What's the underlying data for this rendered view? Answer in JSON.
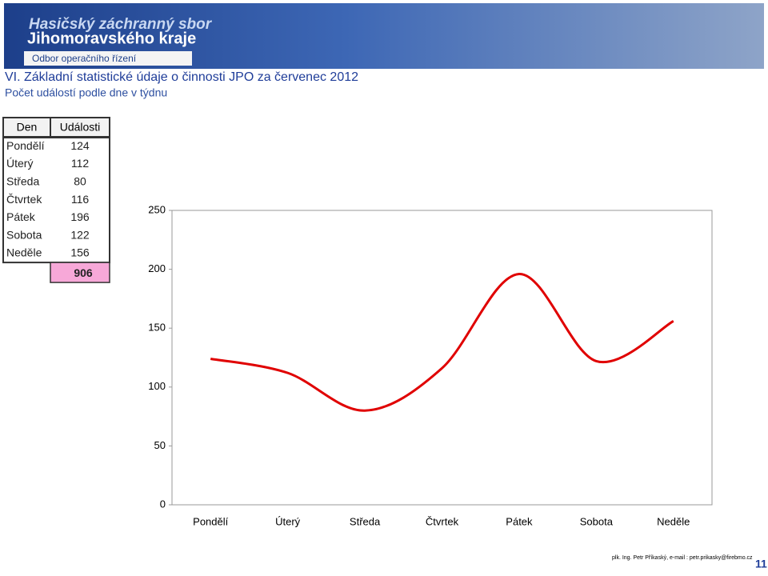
{
  "header": {
    "line1": "Hasičský záchranný sbor",
    "line2": "Jihomoravského kraje",
    "line3": "Odbor operačního řízení"
  },
  "title": "VI. Základní statistické údaje o činnosti JPO za červenec 2012",
  "subtitle": "Počet událostí podle dne v týdnu",
  "table": {
    "columns": [
      "Den",
      "Události"
    ],
    "rows": [
      [
        "Pondělí",
        124
      ],
      [
        "Úterý",
        112
      ],
      [
        "Středa",
        80
      ],
      [
        "Čtvrtek",
        116
      ],
      [
        "Pátek",
        196
      ],
      [
        "Sobota",
        122
      ],
      [
        "Neděle",
        156
      ]
    ],
    "total": 906
  },
  "chart_data": {
    "type": "line",
    "categories": [
      "Pondělí",
      "Úterý",
      "Středa",
      "Čtvrtek",
      "Pátek",
      "Sobota",
      "Neděle"
    ],
    "values": [
      124,
      112,
      80,
      116,
      196,
      122,
      156
    ],
    "color": "#e00000",
    "smooth": true,
    "ylim": [
      0,
      250
    ],
    "yticks": [
      0,
      50,
      100,
      150,
      200,
      250
    ],
    "grid": false
  },
  "footer": {
    "author": "plk. Ing. Petr Příkaský, e-mail : petr.prikasky@firebmo.cz",
    "page": "11"
  }
}
